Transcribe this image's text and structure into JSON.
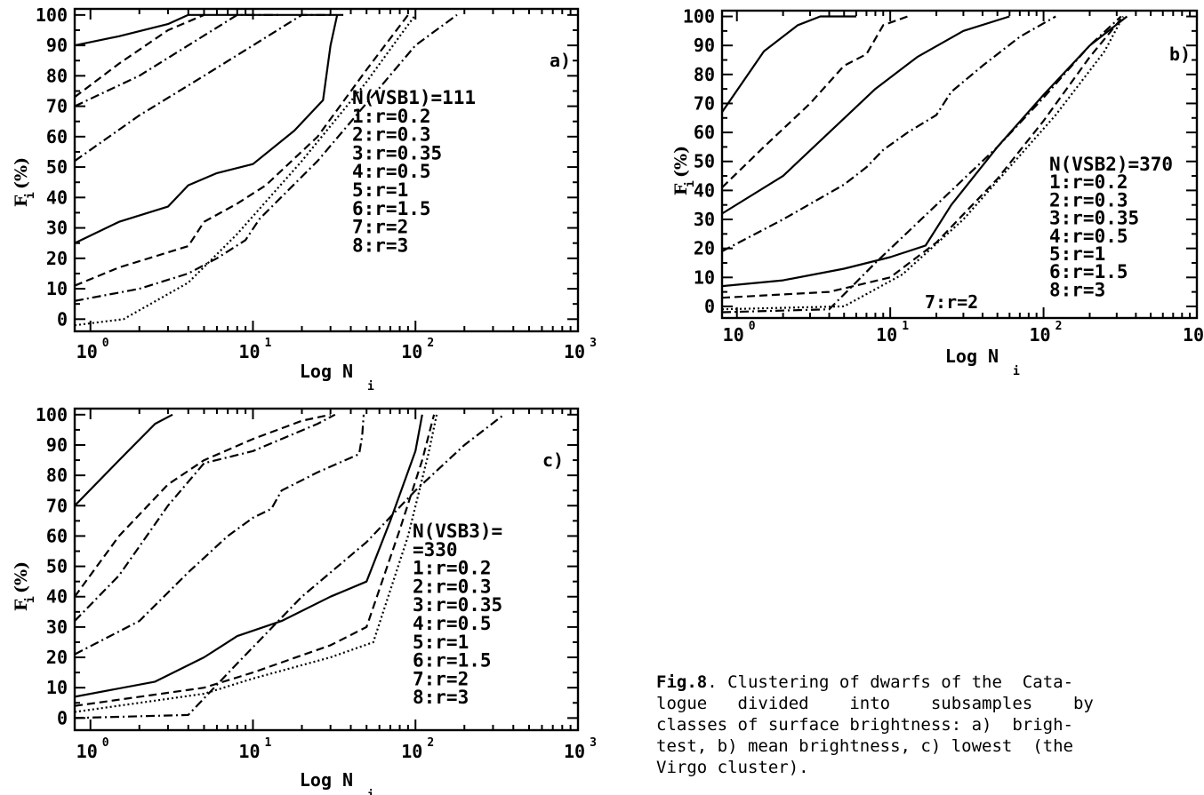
{
  "chart_data": [
    {
      "type": "line",
      "panel_label": "a)",
      "x_scale": "log",
      "xlim": [
        0.8,
        1000
      ],
      "ylim": [
        -4,
        102
      ],
      "x_tick_labels": [
        "10",
        "10",
        "10",
        "10"
      ],
      "x_tick_powers": [
        "0",
        "1",
        "2",
        "3"
      ],
      "y_tick_labels": [
        "0",
        "10",
        "20",
        "30",
        "40",
        "50",
        "60",
        "70",
        "80",
        "90",
        "100"
      ],
      "xlabel": "Log N",
      "xlabel_sub": "i",
      "ylabel": "F (%)",
      "ylabel_sub": "i",
      "legend_lines": [
        "N(VSB1)=111",
        "1:r=0.2",
        "2:r=0.3",
        "3:r=0.35",
        "4:r=0.5",
        "5:r=1",
        "6:r=1.5",
        "7:r=2",
        "8:r=3"
      ],
      "legend_placement": "center-right",
      "series": [
        {
          "style": "solid",
          "x": [
            0.8,
            1.5,
            3,
            4,
            6,
            10,
            25,
            30,
            36
          ],
          "y": [
            90,
            93,
            97,
            100,
            100,
            100,
            100,
            100,
            100
          ]
        },
        {
          "style": "dashed",
          "x": [
            0.8,
            1.5,
            3,
            5
          ],
          "y": [
            73,
            84,
            95,
            100
          ]
        },
        {
          "style": "dashdot",
          "x": [
            0.8,
            2,
            4,
            8,
            15
          ],
          "y": [
            70,
            80,
            90,
            100,
            100
          ]
        },
        {
          "style": "dashdot",
          "x": [
            0.8,
            2,
            5,
            10,
            20,
            30
          ],
          "y": [
            52,
            67,
            80,
            90,
            100,
            100
          ]
        },
        {
          "style": "solid",
          "x": [
            0.8,
            1.5,
            3,
            4,
            6,
            10,
            18,
            27,
            30,
            33
          ],
          "y": [
            25,
            32,
            37,
            44,
            48,
            51,
            62,
            72,
            90,
            100
          ]
        },
        {
          "style": "dashed",
          "x": [
            0.8,
            1.5,
            4,
            5,
            8,
            12,
            25,
            50,
            90
          ],
          "y": [
            11,
            17,
            24,
            32,
            38,
            44,
            60,
            82,
            100
          ]
        },
        {
          "style": "dashdot",
          "x": [
            0.8,
            2,
            4,
            6,
            9,
            11,
            25,
            50,
            100,
            180
          ],
          "y": [
            6,
            10,
            15,
            20,
            26,
            33,
            52,
            71,
            90,
            100
          ]
        },
        {
          "style": "dotted",
          "x": [
            0.8,
            1.6,
            4,
            8,
            20,
            50,
            80,
            100
          ],
          "y": [
            -2,
            0,
            12,
            28,
            52,
            78,
            93,
            100
          ]
        }
      ]
    },
    {
      "type": "line",
      "panel_label": "b)",
      "x_scale": "log",
      "xlim": [
        0.8,
        1000
      ],
      "ylim": [
        -4,
        102
      ],
      "x_tick_labels": [
        "10",
        "10",
        "10",
        "10"
      ],
      "x_tick_powers": [
        "0",
        "1",
        "2",
        "3"
      ],
      "y_tick_labels": [
        "0",
        "10",
        "20",
        "30",
        "40",
        "50",
        "60",
        "70",
        "80",
        "90",
        "100"
      ],
      "xlabel": "Log N",
      "xlabel_sub": "i",
      "ylabel": "F (%)",
      "ylabel_sub": "i",
      "legend_lines": [
        "N(VSB2)=370",
        "1:r=0.2",
        "2:r=0.3",
        "3:r=0.35",
        "4:r=0.5",
        "5:r=1",
        "6:r=1.5",
        "8:r=3"
      ],
      "annotation": "7:r=2",
      "legend_placement": "center-right",
      "series": [
        {
          "style": "solid",
          "x": [
            0.8,
            1.5,
            2.5,
            3.5,
            6
          ],
          "y": [
            67,
            88,
            97,
            100,
            100
          ]
        },
        {
          "style": "dashed",
          "x": [
            0.8,
            1.5,
            3,
            5,
            7,
            9,
            13
          ],
          "y": [
            41,
            55,
            70,
            83,
            87,
            97,
            100
          ]
        },
        {
          "style": "solid",
          "x": [
            0.8,
            2,
            4,
            8,
            15,
            30,
            60
          ],
          "y": [
            32,
            45,
            60,
            75,
            86,
            95,
            100
          ]
        },
        {
          "style": "dashdot",
          "x": [
            0.8,
            2,
            5,
            7,
            9,
            13,
            20,
            25,
            40,
            70,
            120
          ],
          "y": [
            19,
            30,
            42,
            48,
            54,
            60,
            66,
            74,
            83,
            93,
            100
          ]
        },
        {
          "style": "solid",
          "x": [
            0.8,
            2,
            5,
            10,
            17,
            25,
            50,
            100,
            200,
            350
          ],
          "y": [
            7,
            9,
            13,
            17,
            21,
            35,
            55,
            73,
            90,
            100
          ]
        },
        {
          "style": "dashed",
          "x": [
            0.8,
            4,
            10,
            20,
            50,
            100,
            200,
            330
          ],
          "y": [
            3,
            5,
            10,
            22,
            44,
            64,
            86,
            100
          ]
        },
        {
          "style": "dotted",
          "x": [
            0.8,
            5,
            12,
            30,
            60,
            120,
            250,
            330
          ],
          "y": [
            -1,
            0,
            11,
            30,
            48,
            66,
            88,
            100
          ]
        },
        {
          "style": "dashdot",
          "x": [
            0.8,
            4,
            8,
            20,
            50,
            100,
            200,
            320
          ],
          "y": [
            -2,
            -1,
            15,
            35,
            55,
            72,
            90,
            100
          ]
        }
      ]
    },
    {
      "type": "line",
      "panel_label": "c)",
      "x_scale": "log",
      "xlim": [
        0.8,
        1000
      ],
      "ylim": [
        -4,
        102
      ],
      "x_tick_labels": [
        "10",
        "10",
        "10",
        "10"
      ],
      "x_tick_powers": [
        "0",
        "1",
        "2",
        "3"
      ],
      "y_tick_labels": [
        "0",
        "10",
        "20",
        "30",
        "40",
        "50",
        "60",
        "70",
        "80",
        "90",
        "100"
      ],
      "xlabel": "Log N",
      "xlabel_sub": "i",
      "ylabel": "F (%)",
      "ylabel_sub": "i",
      "legend_lines": [
        "N(VSB3)=",
        "=330",
        "1:r=0.2",
        "2:r=0.3",
        "3:r=0.35",
        "4:r=0.5",
        "5:r=1",
        "6:r=1.5",
        "7:r=2",
        "8:r=3"
      ],
      "legend_placement": "center-right",
      "series": [
        {
          "style": "solid",
          "x": [
            0.8,
            1.5,
            2.5,
            3.2
          ],
          "y": [
            70,
            85,
            97,
            100
          ]
        },
        {
          "style": "dashed",
          "x": [
            0.8,
            1.5,
            3,
            5,
            10,
            20,
            30
          ],
          "y": [
            40,
            60,
            77,
            85,
            92,
            98,
            100
          ]
        },
        {
          "style": "dashdot",
          "x": [
            0.8,
            1.5,
            3,
            5,
            10,
            25,
            32
          ],
          "y": [
            32,
            47,
            70,
            84,
            88,
            97,
            100
          ]
        },
        {
          "style": "dashdot",
          "x": [
            0.8,
            2,
            4,
            7,
            10,
            13,
            15,
            25,
            45,
            47,
            48
          ],
          "y": [
            21,
            32,
            48,
            60,
            66,
            69,
            75,
            81,
            87,
            93,
            100
          ]
        },
        {
          "style": "solid",
          "x": [
            0.8,
            2.5,
            5,
            8,
            15,
            30,
            50,
            70,
            100,
            110
          ],
          "y": [
            7,
            12,
            20,
            27,
            32,
            40,
            45,
            65,
            88,
            100
          ]
        },
        {
          "style": "dashed",
          "x": [
            0.8,
            5,
            10,
            30,
            50,
            80,
            110,
            130
          ],
          "y": [
            4,
            10,
            15,
            24,
            30,
            62,
            85,
            100
          ]
        },
        {
          "style": "dotted",
          "x": [
            0.8,
            5,
            10,
            30,
            55,
            90,
            120,
            135
          ],
          "y": [
            2,
            8,
            13,
            20,
            25,
            60,
            87,
            100
          ]
        },
        {
          "style": "dashdot",
          "x": [
            0.8,
            4,
            8,
            20,
            50,
            100,
            200,
            350
          ],
          "y": [
            0,
            1,
            18,
            40,
            58,
            75,
            90,
            100
          ]
        }
      ]
    }
  ],
  "caption": {
    "label": "Fig.8",
    "lines": [
      ". Clustering of dwarfs of the  Cata-",
      "logue   divided    into    subsamples    by",
      "classes of surface brightness: a)  brigh-",
      "test, b) mean brightness, c) lowest  (the",
      "Virgo cluster)."
    ]
  }
}
